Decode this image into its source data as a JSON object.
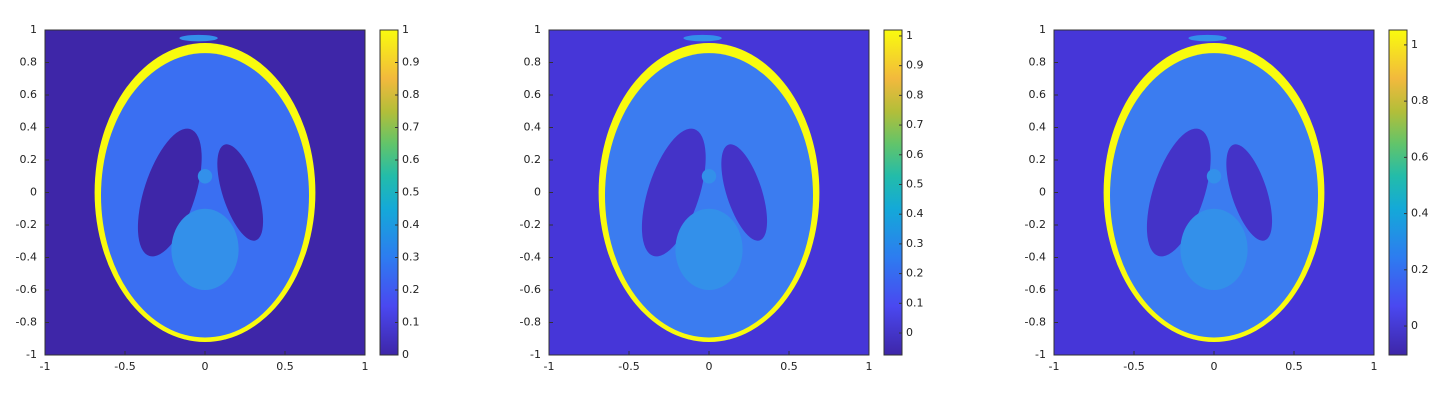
{
  "chart_data": [
    {
      "type": "image",
      "xlim": [
        -1,
        1
      ],
      "ylim": [
        -1,
        1
      ],
      "xticks": [
        -1,
        -0.5,
        0,
        0.5,
        1
      ],
      "yticks": [
        -1,
        -0.8,
        -0.6,
        -0.4,
        -0.2,
        0,
        0.2,
        0.4,
        0.6,
        0.8,
        1
      ],
      "colorbar": {
        "clim": [
          0,
          1
        ],
        "ticks": [
          0,
          0.1,
          0.2,
          0.3,
          0.4,
          0.5,
          0.6,
          0.7,
          0.8,
          0.9,
          1
        ]
      }
    },
    {
      "type": "image",
      "xlim": [
        -1,
        1
      ],
      "ylim": [
        -1,
        1
      ],
      "xticks": [
        -1,
        -0.5,
        0,
        0.5,
        1
      ],
      "yticks": [
        -1,
        -0.8,
        -0.6,
        -0.4,
        -0.2,
        0,
        0.2,
        0.4,
        0.6,
        0.8,
        1
      ],
      "colorbar": {
        "clim": [
          -0.074,
          1.02
        ],
        "ticks": [
          0,
          0.1,
          0.2,
          0.3,
          0.4,
          0.5,
          0.6,
          0.7,
          0.8,
          0.9,
          1
        ]
      }
    },
    {
      "type": "image",
      "xlim": [
        -1,
        1
      ],
      "ylim": [
        -1,
        1
      ],
      "xticks": [
        -1,
        -0.5,
        0,
        0.5,
        1
      ],
      "yticks": [
        -1,
        -0.8,
        -0.6,
        -0.4,
        -0.2,
        0,
        0.2,
        0.4,
        0.6,
        0.8,
        1
      ],
      "colorbar": {
        "clim": [
          -0.103,
          1.053
        ],
        "ticks": [
          0,
          0.2,
          0.4,
          0.6,
          0.8,
          1
        ]
      }
    }
  ]
}
